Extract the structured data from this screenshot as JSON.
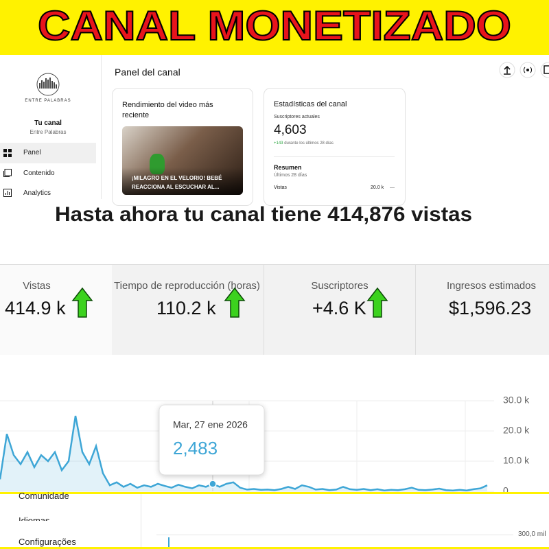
{
  "banner": {
    "title": "CANAL MONETIZADO"
  },
  "studio": {
    "logo_text": "ENTRE PALABRAS",
    "channel_label": "Tu canal",
    "channel_name": "Entre Palabras",
    "nav": [
      "Panel",
      "Contenido",
      "Analytics"
    ],
    "page_title": "Panel del canal",
    "video_card": {
      "title": "Rendimiento del video más reciente",
      "thumbnail_text": "¡MILAGRO EN EL VELORIO! BEBÉ REACCIONA AL ESCUCHAR AL..."
    },
    "stats_card": {
      "title": "Estadísticas del canal",
      "subs_label": "Suscriptores actuales",
      "subs_value": "4,603",
      "subs_change": "+143",
      "subs_change_text": "durante los últimos 28 días",
      "summary_title": "Resumen",
      "summary_period": "Últimos 28 días",
      "views_label": "Vistas",
      "views_value": "20.0 k",
      "views_trend": "—"
    }
  },
  "headline": "Hasta ahora tu canal tiene 414,876 vistas",
  "metrics": [
    {
      "label": "Vistas",
      "value": "414.9 k"
    },
    {
      "label": "Tiempo de reproducción (horas)",
      "value": "110.2 k"
    },
    {
      "label": "Suscriptores",
      "value": "+4.6 K"
    },
    {
      "label": "Ingresos estimados",
      "value": "$1,596.23"
    }
  ],
  "analytics_chart": {
    "type": "line",
    "color": "#3ea6d6",
    "values": [
      4000,
      19000,
      12000,
      9000,
      13000,
      8000,
      12000,
      10000,
      13000,
      7000,
      10000,
      25000,
      13000,
      9000,
      15000,
      6000,
      2000,
      3000,
      1500,
      2500,
      1200,
      2000,
      1500,
      2500,
      1800,
      1200,
      2200,
      1500,
      1000,
      2000,
      1500,
      2483,
      1500,
      2500,
      3000,
      1200,
      600,
      800,
      500,
      600,
      400,
      800,
      1500,
      800,
      2000,
      1500,
      600,
      800,
      400,
      600,
      1500,
      700,
      500,
      800,
      400,
      700,
      300,
      500,
      400,
      700,
      1200,
      500,
      400,
      600,
      900,
      400,
      300,
      500,
      300,
      700,
      1000,
      2000
    ],
    "ylim": [
      0,
      30000
    ],
    "yticks": [
      0,
      {
        "value": 10000,
        "label": "10.0 k"
      },
      {
        "value": 20000,
        "label": "20.0 k"
      },
      {
        "value": 30000,
        "label": "30.0 k"
      }
    ],
    "tooltip": {
      "date": "Mar, 27 ene 2026",
      "label": "2,483"
    }
  },
  "lower_ui": {
    "items": [
      "Comunidade",
      "Idiomas",
      "Configurações"
    ],
    "tick": "300,0 mil"
  }
}
